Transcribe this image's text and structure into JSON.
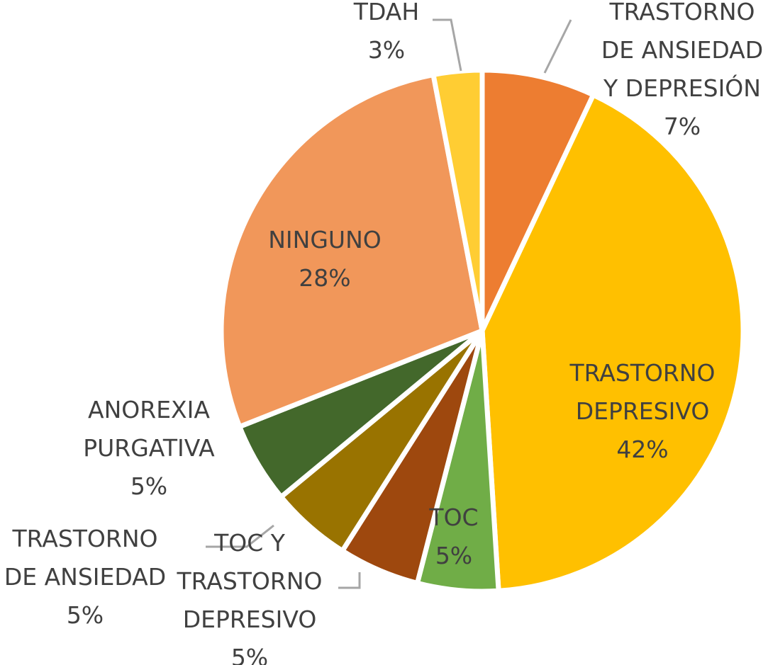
{
  "chart_data": {
    "type": "pie",
    "title": "",
    "slices": [
      {
        "name": "TRASTORNO DE ANSIEDAD Y DEPRESIÓN",
        "label_lines": [
          "TRASTORNO",
          "DE ANSIEDAD",
          "Y DEPRESIÓN"
        ],
        "value": 7,
        "label": "7%",
        "color": "#ED7D31"
      },
      {
        "name": "TRASTORNO DEPRESIVO",
        "label_lines": [
          "TRASTORNO",
          "DEPRESIVO"
        ],
        "value": 42,
        "label": "42%",
        "color": "#FFC000"
      },
      {
        "name": "TOC",
        "label_lines": [
          "TOC"
        ],
        "value": 5,
        "label": "5%",
        "color": "#70AD47"
      },
      {
        "name": "TOC Y TRASTORNO DEPRESIVO",
        "label_lines": [
          "TOC Y",
          "TRASTORNO",
          "DEPRESIVO"
        ],
        "value": 5,
        "label": "5%",
        "color": "#9E480E"
      },
      {
        "name": "TRASTORNO DE ANSIEDAD",
        "label_lines": [
          "TRASTORNO",
          "DE ANSIEDAD"
        ],
        "value": 5,
        "label": "5%",
        "color": "#997300"
      },
      {
        "name": "ANOREXIA PURGATIVA",
        "label_lines": [
          "ANOREXIA",
          "PURGATIVA"
        ],
        "value": 5,
        "label": "5%",
        "color": "#43682B"
      },
      {
        "name": "NINGUNO",
        "label_lines": [
          "NINGUNO"
        ],
        "value": 28,
        "label": "28%",
        "color": "#F1975A"
      },
      {
        "name": "TDAH",
        "label_lines": [
          "TDAH"
        ],
        "value": 3,
        "label": "3%",
        "color": "#FFCD33"
      }
    ],
    "legend": "none",
    "label_color": "#404040",
    "leader_line_color": "#A6A6A6"
  }
}
